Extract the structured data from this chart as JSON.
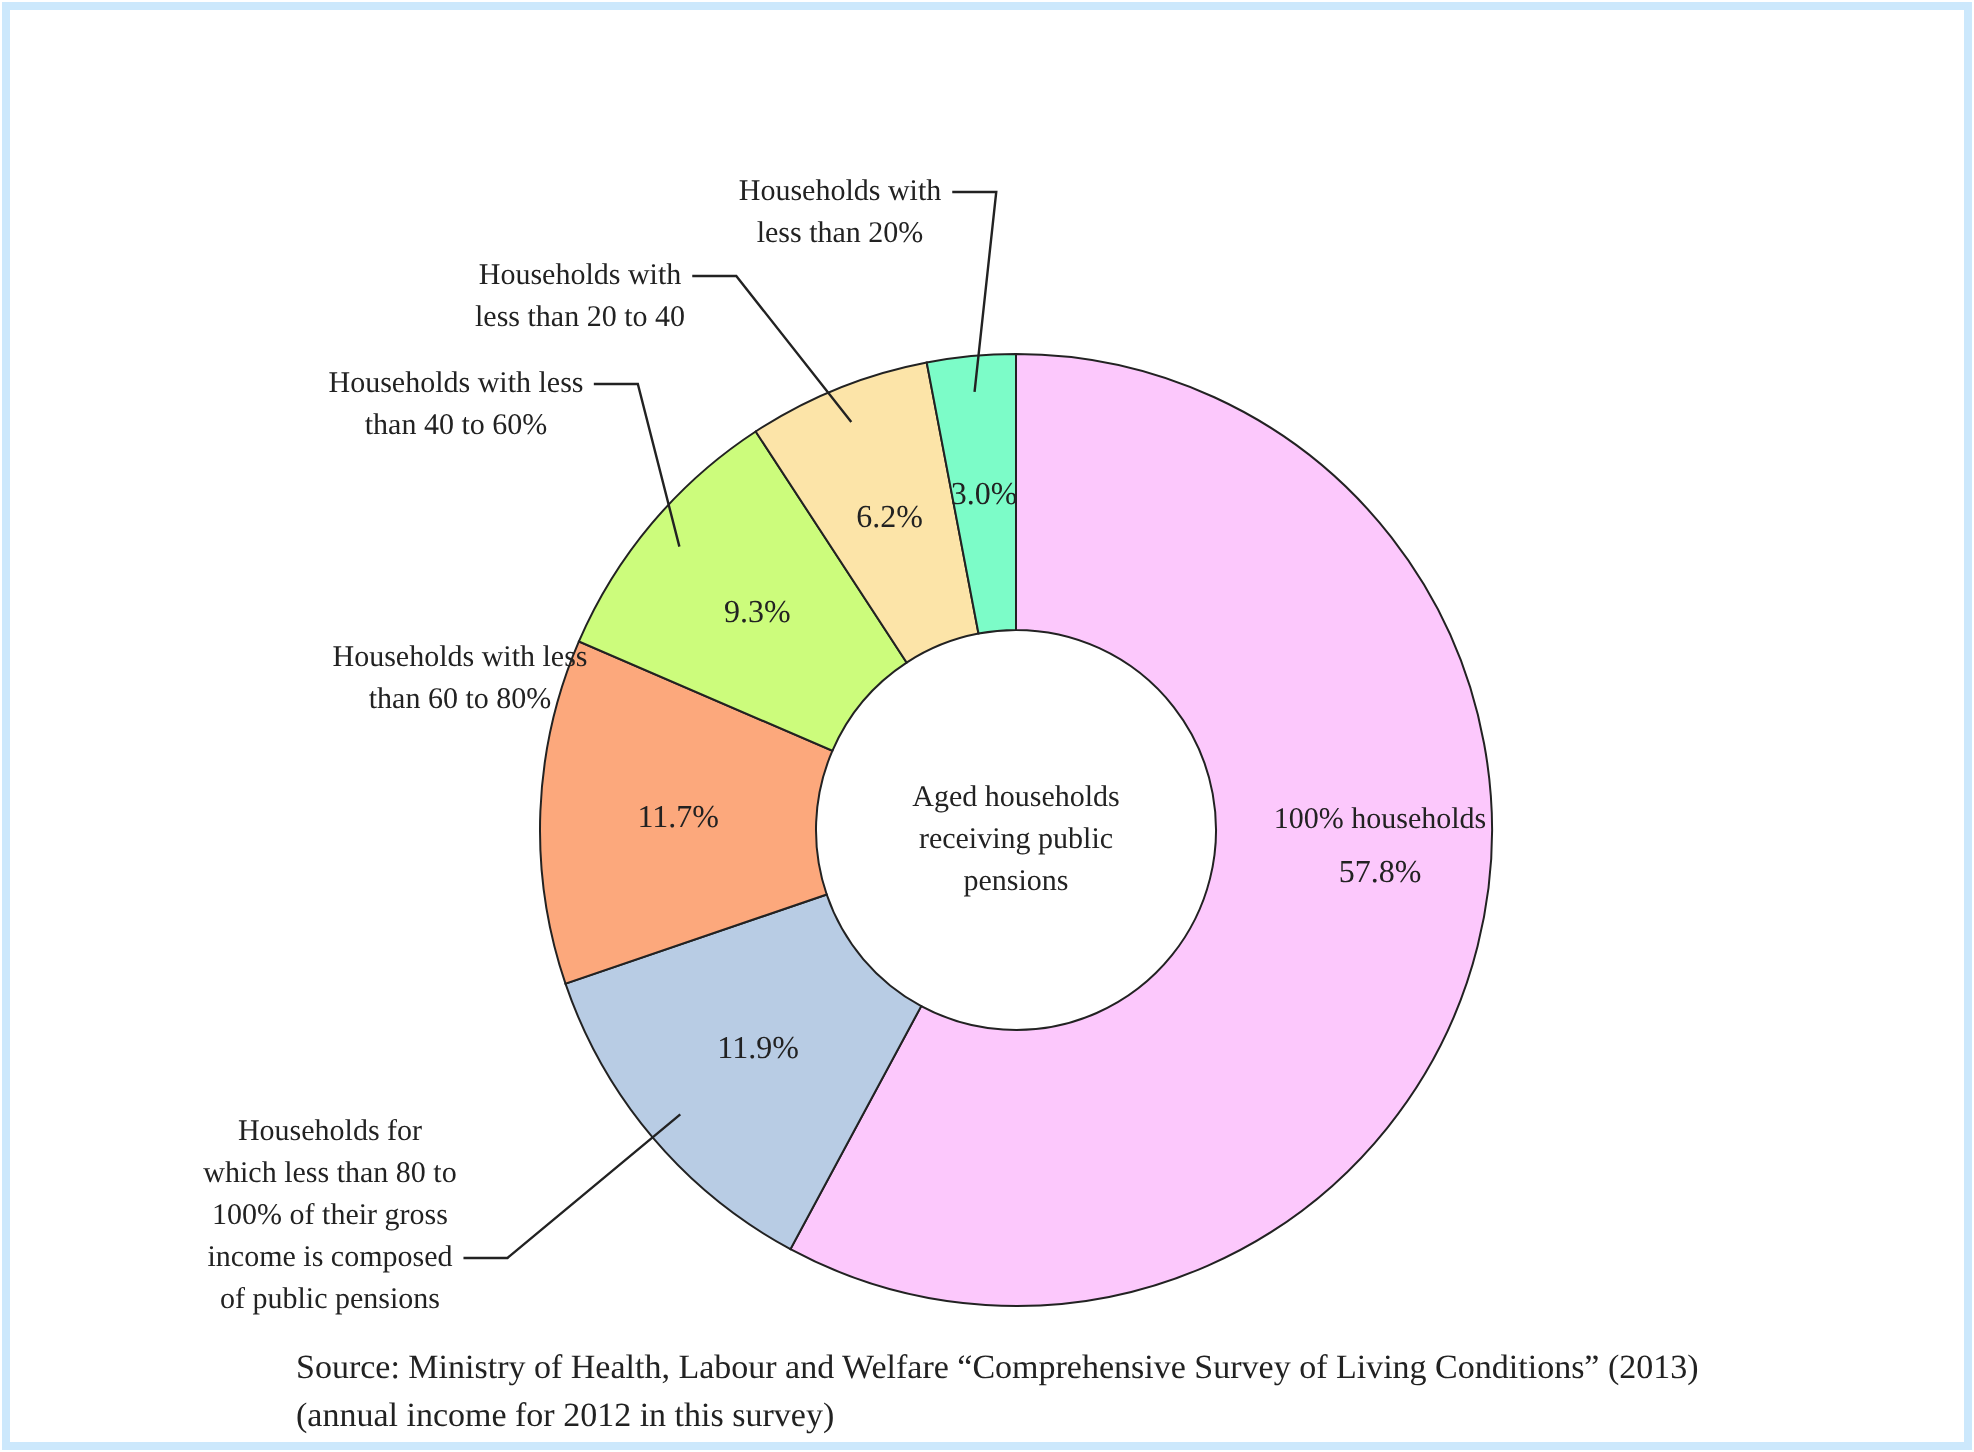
{
  "chart_data": {
    "type": "donut",
    "categories": [
      "100% households",
      "Households for which less than 80 to 100% of their gross income is composed of public pensions",
      "Households with less than 60 to 80%",
      "Households with less than 40 to 60%",
      "Households with less than 20 to 40",
      "Households with less than 20%"
    ],
    "values": [
      57.8,
      11.9,
      11.7,
      9.3,
      6.2,
      3.0
    ],
    "colors": [
      "#fcc8fc",
      "#b8cce4",
      "#fca87c",
      "#ccfc7c",
      "#fce4a8",
      "#7cfcc8"
    ],
    "value_labels": [
      "57.8%",
      "11.9%",
      "11.7%",
      "9.3%",
      "6.2%",
      "3.0%"
    ],
    "annotations": [
      "Aged households receiving public pensions",
      "Source: Ministry of Health, Labour and Welfare “Comprehensive Survey of Living Conditions” (2013) (annual income for 2012 in this survey)"
    ]
  }
}
